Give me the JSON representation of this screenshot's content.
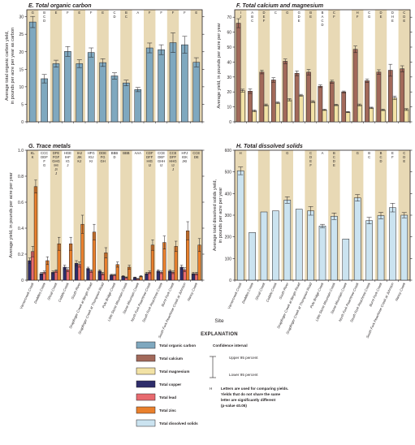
{
  "sites": [
    "Varnercreek Creek",
    "Doddies Creek",
    "Shoal Creek",
    "Cobble Creek",
    "South River",
    "Snapfinger Creek at Bergin Road",
    "Snapfinger Creek at Thompson Road",
    "Pole Bridge Creek",
    "Little Stone Mountain Creek",
    "Stone Mountain Creek",
    "North Fork Peachtree Creek",
    "South Fork Peachtree Creek",
    "Burnt Fork Creek",
    "South Fork Peachtree Creek at Johnson",
    "Nancy Creek"
  ],
  "colors": {
    "toc": "#7fa8bf",
    "calcium": "#a2695a",
    "magnesium": "#f2e2a5",
    "copper": "#2e2d6b",
    "lead": "#e86a6f",
    "zinc": "#e9802c",
    "tds": "#cbe3f0",
    "band": "#e8d9b5",
    "axis": "#231f20"
  },
  "xaxis_label": "Site",
  "panels": {
    "E": {
      "title": "E.  Total organic carbon",
      "ylabel_line1": "Average total organic carbon yield,",
      "ylabel_line2": "in pounds per acre per year as carbon",
      "ticks": [
        "0",
        "5",
        "10",
        "15",
        "20",
        "25",
        "30"
      ],
      "letters": [
        "G",
        "B C D",
        "E",
        "F",
        "E",
        "F",
        "E",
        "C D",
        "B C",
        "A",
        "F",
        "F",
        "F",
        "F",
        "E"
      ]
    },
    "F": {
      "title": "F.  Total calcium and magnesium",
      "ylabel_line1": "Average yield, in pounds per acre per year",
      "ylabel_line2": "",
      "ticks": [
        "0",
        "10",
        "20",
        "30",
        "40",
        "50",
        "60",
        "70"
      ],
      "letters": [
        "I J",
        "A B C",
        "D E F",
        "C",
        "G",
        "G D E",
        "B E",
        "B A C D",
        "C F",
        "",
        "H F",
        "C G",
        "D E",
        "D H E",
        "C D E"
      ]
    },
    "G": {
      "title": "G.  Trace metals",
      "ylabel_line1": "Average yield, in pounds per acre per year",
      "ylabel_line2": "",
      "ticks": [
        "0",
        "0.2",
        "0.4",
        "0.6",
        "0.8",
        "1.0"
      ],
      "letters": [
        "KL K",
        "CCC DDF F G",
        "DFE FGF GHG IHI JI J",
        "HGE IHF IG J",
        "IHJ JIK KJ",
        "HFG IGJ KI",
        "DDE FG GH",
        "BBB D",
        "BBB",
        "AAA",
        "CDF DFF HIG IJ",
        "CCE DEF GHH IJ",
        "CCE DFF HHG IJ J",
        "HFJ IGK JKI",
        "CCE DE"
      ]
    },
    "H": {
      "title": "H.  Total dissolved solids",
      "ylabel_line1": "Average total dissolved solids yield,",
      "ylabel_line2": "in pounds per acre per year",
      "ticks": [
        "0",
        "100",
        "200",
        "300",
        "400",
        "500",
        "600"
      ],
      "letters": [
        "H",
        "",
        "",
        "",
        "G",
        "",
        "C D E F",
        "A",
        "B C D E",
        "",
        "G",
        "B C",
        "B C D",
        "E F",
        "C D E"
      ]
    }
  },
  "explanation": {
    "title": "EXPLANATION",
    "items": [
      "Total organic carbon",
      "Total calcium",
      "Total magnesium",
      "Total copper",
      "Total lead",
      "Total zinc",
      "Total dissolved solids"
    ],
    "ci_title": "Confidence interval",
    "upper": "Upper 95 percent",
    "lower": "Lower 95 percent",
    "letter_sample": "H",
    "letter_note1": "Letters are used for comparing yields.",
    "letter_note2": "Yields that do not share the same",
    "letter_note3": "letter are significantly different",
    "letter_note4": "(p-value ≤0.05)"
  },
  "chart_data": [
    {
      "panel": "E",
      "type": "bar",
      "title": "E.  Total organic carbon",
      "ylabel": "Average total organic carbon yield, in pounds per acre per year as carbon",
      "ylim": [
        0,
        32
      ],
      "series": [
        {
          "name": "Total organic carbon",
          "values": [
            28.5,
            12.3,
            16.6,
            20.1,
            16.6,
            19.8,
            16.9,
            13.1,
            11.1,
            9.2,
            21.1,
            20.6,
            22.6,
            22.0,
            17.0
          ],
          "err": [
            1.6,
            1.2,
            1.0,
            1.4,
            1.1,
            1.3,
            1.1,
            0.9,
            0.8,
            0.6,
            1.4,
            1.4,
            2.8,
            2.4,
            1.3
          ]
        }
      ]
    },
    {
      "panel": "F",
      "type": "bar",
      "title": "F.  Total calcium and magnesium",
      "ylabel": "Average yield, in pounds per acre per year",
      "ylim": [
        0,
        75
      ],
      "series": [
        {
          "name": "Total calcium",
          "values": [
            66,
            20.5,
            33.3,
            28,
            40.5,
            32.5,
            33.2,
            23.8,
            26.8,
            20,
            48.5,
            27.5,
            33.3,
            34.5,
            35.5
          ],
          "err": [
            3,
            1.5,
            1.2,
            1.5,
            1.5,
            1.6,
            1.8,
            0.9,
            1.0,
            0.6,
            2.2,
            1.2,
            1.5,
            4,
            2
          ]
        },
        {
          "name": "Total magnesium",
          "values": [
            20.8,
            7.3,
            11.2,
            12.7,
            14.7,
            17.7,
            13.5,
            8.0,
            11.3,
            6.5,
            11.3,
            9.3,
            8.0,
            16.0,
            8.2
          ],
          "err": [
            1.0,
            0.6,
            0.7,
            0.6,
            0.8,
            0.7,
            0.6,
            0.4,
            0.5,
            0.4,
            0.6,
            0.5,
            0.5,
            1.2,
            0.6
          ]
        }
      ]
    },
    {
      "panel": "G",
      "type": "bar",
      "title": "G.  Trace metals",
      "ylabel": "Average yield, in pounds per acre per year",
      "ylim": [
        0,
        1.0
      ],
      "series": [
        {
          "name": "Total copper",
          "values": [
            0.15,
            0.05,
            0.06,
            0.1,
            0.13,
            0.09,
            0.07,
            0.04,
            0.03,
            0.02,
            0.05,
            0.07,
            0.07,
            0.1,
            0.05
          ],
          "err": [
            0.02,
            0.01,
            0.01,
            0.015,
            0.02,
            0.01,
            0.01,
            0.005,
            0.005,
            0.004,
            0.01,
            0.01,
            0.01,
            0.015,
            0.01
          ]
        },
        {
          "name": "Total lead",
          "values": [
            0.22,
            0.06,
            0.07,
            0.08,
            0.12,
            0.07,
            0.05,
            0.04,
            0.02,
            0.01,
            0.06,
            0.06,
            0.06,
            0.08,
            0.05
          ],
          "err": [
            0.04,
            0.01,
            0.01,
            0.015,
            0.02,
            0.01,
            0.01,
            0.005,
            0.005,
            0.003,
            0.01,
            0.01,
            0.01,
            0.015,
            0.01
          ]
        },
        {
          "name": "Total zinc",
          "values": [
            0.72,
            0.15,
            0.28,
            0.28,
            0.43,
            0.37,
            0.21,
            0.12,
            0.1,
            0.03,
            0.27,
            0.29,
            0.26,
            0.38,
            0.27
          ],
          "err": [
            0.05,
            0.03,
            0.05,
            0.05,
            0.07,
            0.06,
            0.04,
            0.02,
            0.015,
            0.005,
            0.04,
            0.05,
            0.04,
            0.07,
            0.05
          ]
        }
      ]
    },
    {
      "panel": "H",
      "type": "bar",
      "title": "H.  Total dissolved solids",
      "ylabel": "Average total dissolved solids yield, in pounds per acre per year",
      "ylim": [
        0,
        600
      ],
      "series": [
        {
          "name": "Total dissolved solids",
          "values": [
            505,
            220,
            315,
            320,
            370,
            328,
            320,
            250,
            295,
            190,
            380,
            275,
            298,
            335,
            300
          ],
          "err": [
            18,
            0,
            0,
            0,
            15,
            0,
            20,
            8,
            15,
            0,
            15,
            15,
            15,
            20,
            12
          ]
        }
      ]
    }
  ]
}
